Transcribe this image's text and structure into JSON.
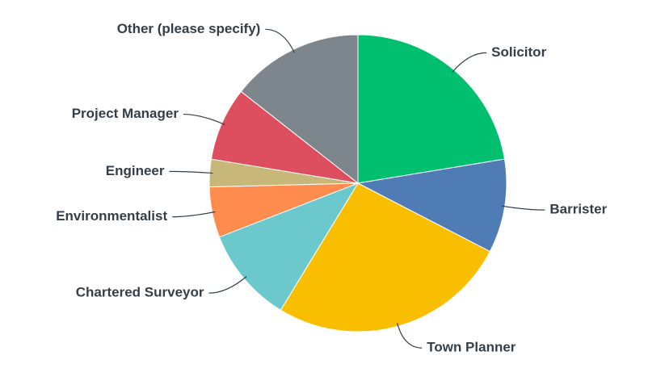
{
  "chart_data": {
    "type": "pie",
    "categories": [
      "Solicitor",
      "Barrister",
      "Town Planner",
      "Chartered Surveyor",
      "Environmentalist",
      "Engineer",
      "Project Manager",
      "Other (please specify)"
    ],
    "values": [
      22.4,
      10.2,
      26.1,
      10.4,
      5.5,
      3.0,
      8.0,
      14.4
    ],
    "colors": [
      "#00bf6f",
      "#507cb6",
      "#f9be00",
      "#6bc8cd",
      "#ff8b4f",
      "#c7b879",
      "#dd4f5e",
      "#7d868c"
    ]
  }
}
